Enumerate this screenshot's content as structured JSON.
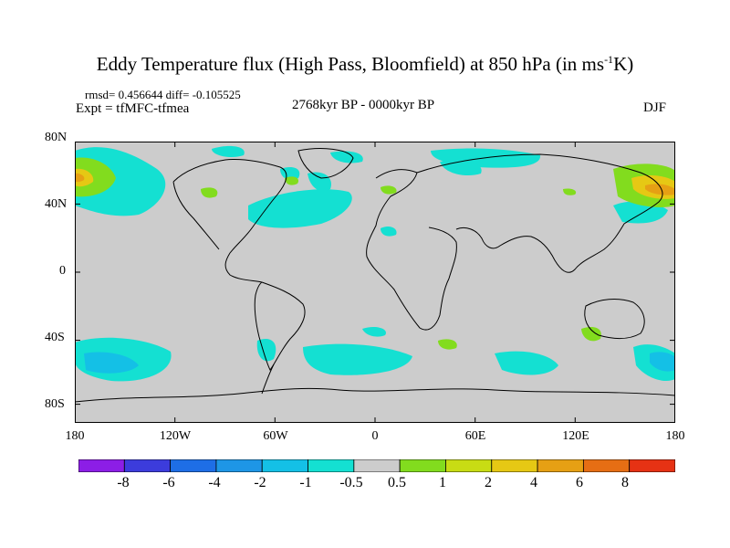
{
  "title": {
    "main": "Eddy Temperature flux (High Pass, Bloomfield) at 850 hPa (in ms",
    "sup": "-1",
    "tail": "K)"
  },
  "stats": "rmsd= 0.456644 diff= -0.105525",
  "experiment": "Expt = tfMFC-tfmea",
  "period": "2768kyr BP - 0000kyr BP",
  "season": "DJF",
  "lat_labels": [
    "80N",
    "40N",
    "0",
    "40S",
    "80S"
  ],
  "lon_labels": [
    "180",
    "120W",
    "60W",
    "0",
    "60E",
    "120E",
    "180"
  ],
  "colorbar": {
    "labels": [
      "-8",
      "-6",
      "-4",
      "-2",
      "-1",
      "-0.5",
      "0.5",
      "1",
      "2",
      "4",
      "6",
      "8"
    ],
    "colors": [
      "#8c1ee6",
      "#3c3cdc",
      "#1e6ee6",
      "#1e96e6",
      "#14c0e6",
      "#14e0d2",
      "#cccccc",
      "#82dc1e",
      "#c8dc14",
      "#e6c814",
      "#e6a014",
      "#e66e14",
      "#e63214"
    ]
  },
  "chart_data": {
    "type": "contour-map",
    "variable": "Eddy Temperature flux (High Pass, Bloomfield) at 850 hPa",
    "units": "ms-1K",
    "difference": "2768kyr BP - 0000kyr BP",
    "season": "DJF",
    "rmsd": 0.456644,
    "diff": -0.105525,
    "lat_range": [
      -90,
      90
    ],
    "lon_range": [
      -180,
      180
    ],
    "levels": [
      -8,
      -6,
      -4,
      -2,
      -1,
      -0.5,
      0.5,
      1,
      2,
      4,
      6,
      8
    ],
    "background": "#cccccc"
  }
}
